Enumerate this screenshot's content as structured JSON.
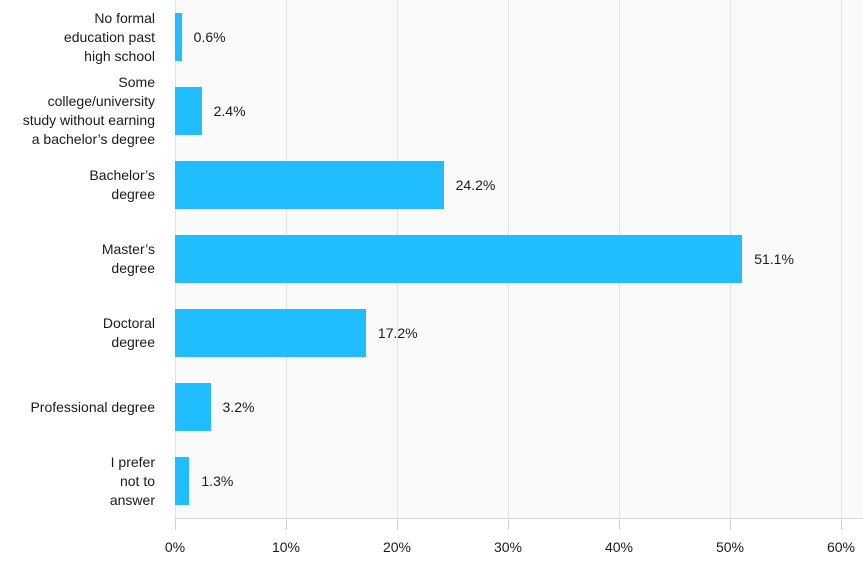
{
  "chart_data": {
    "type": "bar",
    "orientation": "horizontal",
    "title": "",
    "xlabel": "",
    "ylabel": "",
    "categories": [
      "No formal\neducation past\nhigh school",
      "Some\ncollege/university\nstudy without earning\na bachelor’s degree",
      "Bachelor’s\ndegree",
      "Master’s\ndegree",
      "Doctoral\ndegree",
      "Professional degree",
      "I prefer\nnot to\nanswer"
    ],
    "values": [
      0.6,
      2.4,
      24.2,
      51.1,
      17.2,
      3.2,
      1.3
    ],
    "value_labels": [
      "0.6%",
      "2.4%",
      "24.2%",
      "51.1%",
      "17.2%",
      "3.2%",
      "1.3%"
    ],
    "x_ticks": [
      {
        "value": 0,
        "label": "0%"
      },
      {
        "value": 10,
        "label": "10%"
      },
      {
        "value": 20,
        "label": "20%"
      },
      {
        "value": 30,
        "label": "30%"
      },
      {
        "value": 40,
        "label": "40%"
      },
      {
        "value": 50,
        "label": "50%"
      },
      {
        "value": 60,
        "label": "60%"
      }
    ],
    "xlim": [
      0,
      60
    ],
    "grid": true,
    "legend": "none",
    "colors": {
      "bar": "#20BEFF",
      "plot_background": "#FAFAFA",
      "gridline": "#E2E2E2",
      "axis_line": "#D9D9D9",
      "text": "#1B1B1B"
    }
  }
}
